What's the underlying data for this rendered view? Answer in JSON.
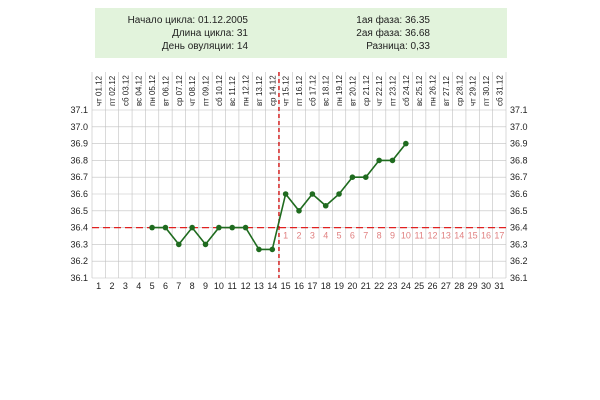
{
  "info": {
    "cycle_start": "Начало цикла: 01.12.2005",
    "cycle_length": "Длина цикла: 31",
    "ovulation_day": "День овуляции: 14",
    "phase1": "1ая фаза: 36.35",
    "phase2": "2ая фаза: 36.68",
    "difference": "Разница: 0,33"
  },
  "chart_data": {
    "type": "line",
    "title": "",
    "xlabel": "",
    "ylabel": "",
    "ylim": [
      36.1,
      37.1
    ],
    "yticks": [
      "36.1",
      "36.2",
      "36.3",
      "36.4",
      "36.5",
      "36.6",
      "36.7",
      "36.8",
      "36.9",
      "37.0",
      "37.1"
    ],
    "grid": true,
    "days": [
      1,
      2,
      3,
      4,
      5,
      6,
      7,
      8,
      9,
      10,
      11,
      12,
      13,
      14,
      15,
      16,
      17,
      18,
      19,
      20,
      21,
      22,
      23,
      24,
      25,
      26,
      27,
      28,
      29,
      30,
      31
    ],
    "dates": [
      "чт 01.12",
      "пт 02.12",
      "сб 03.12",
      "вс 04.12",
      "пн 05.12",
      "вт 06.12",
      "ср 07.12",
      "чт 08.12",
      "пт 09.12",
      "сб 10.12",
      "вс 11.12",
      "пн 12.12",
      "вт 13.12",
      "ср 14.12",
      "чт 15.12",
      "пт 16.12",
      "сб 17.12",
      "вс 18.12",
      "пн 19.12",
      "вт 20.12",
      "ср 21.12",
      "чт 22.12",
      "пт 23.12",
      "сб 24.12",
      "вс 25.12",
      "пн 26.12",
      "вт 27.12",
      "ср 28.12",
      "чт 29.12",
      "пт 30.12",
      "сб 31.12"
    ],
    "temperature": {
      "days": [
        5,
        6,
        7,
        8,
        9,
        10,
        11,
        12,
        13,
        14,
        15,
        16,
        17,
        18,
        19,
        20,
        21,
        22,
        23,
        24
      ],
      "values": [
        36.4,
        36.4,
        36.3,
        36.4,
        36.3,
        36.4,
        36.4,
        36.4,
        36.27,
        36.27,
        36.6,
        36.5,
        36.6,
        36.53,
        36.6,
        36.7,
        36.7,
        36.8,
        36.8,
        36.9
      ]
    },
    "cover_line": 36.4,
    "ovulation_day": 14,
    "luteal_labels": [
      "1",
      "2",
      "3",
      "4",
      "5",
      "6",
      "7",
      "8",
      "9",
      "10",
      "11",
      "12",
      "13",
      "14",
      "15",
      "16",
      "17"
    ],
    "colors": {
      "line": "#1f6b1f",
      "marker": "#1f6b1f",
      "cover_line": "#e02020",
      "ovulation_line": "#cc0000",
      "luteal_labels": "#e08080",
      "info_bg": "#e2f3dc",
      "grid": "#c0c0c0"
    }
  }
}
